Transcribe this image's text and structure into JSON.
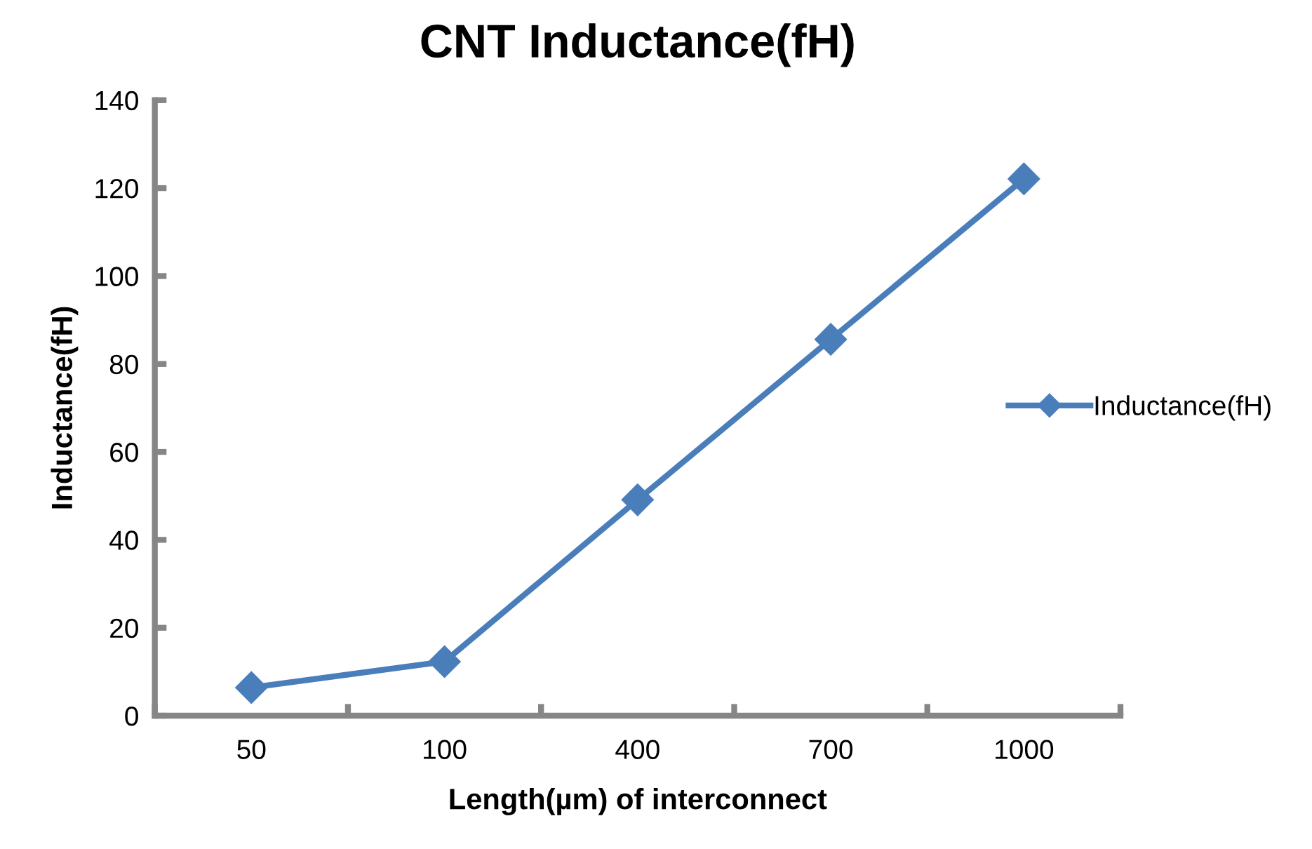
{
  "chart_data": {
    "type": "line",
    "title": "CNT Inductance(fH)",
    "xlabel": "Length(µm) of interconnect",
    "ylabel": "Inductance(fH)",
    "categories": [
      "50",
      "100",
      "400",
      "700",
      "1000"
    ],
    "series": [
      {
        "name": "Inductance(fH)",
        "color": "#4a7ebb",
        "values": [
          6.4,
          12.3,
          49.1,
          85.6,
          122.1
        ]
      }
    ],
    "ylim": [
      0,
      140
    ],
    "yticks": [
      0,
      20,
      40,
      60,
      80,
      100,
      120,
      140
    ],
    "grid": false,
    "legend": "right",
    "marker": "diamond",
    "line_style": "solid"
  }
}
